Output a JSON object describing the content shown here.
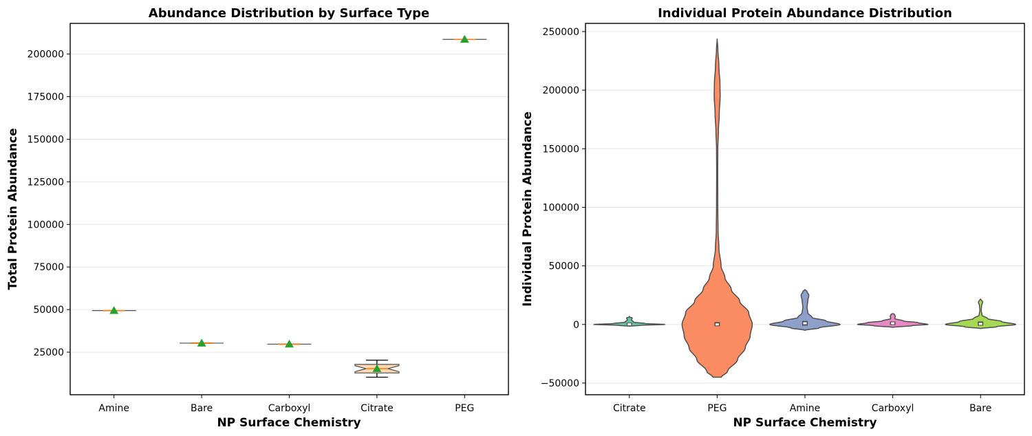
{
  "chart_data": [
    {
      "type": "box",
      "title": "Abundance Distribution by Surface Type",
      "xlabel": "NP Surface Chemistry",
      "ylabel": "Total Protein Abundance",
      "ylim": [
        0,
        218000
      ],
      "yticks": [
        25000,
        50000,
        75000,
        100000,
        125000,
        150000,
        175000,
        200000
      ],
      "ytick_labels": [
        "25000",
        "50000",
        "75000",
        "100000",
        "125000",
        "150000",
        "175000",
        "200000"
      ],
      "grid": "horizontal",
      "categories": [
        "Amine",
        "Bare",
        "Carboxyl",
        "Citrate",
        "PEG"
      ],
      "boxes": [
        {
          "category": "Amine",
          "whislo": 49400,
          "q1": 49400,
          "median": 49400,
          "q3": 49400,
          "whishi": 49400,
          "mean": 49400
        },
        {
          "category": "Bare",
          "whislo": 30300,
          "q1": 30300,
          "median": 30300,
          "q3": 30300,
          "whishi": 30300,
          "mean": 30300
        },
        {
          "category": "Carboxyl",
          "whislo": 29700,
          "q1": 29700,
          "median": 29700,
          "q3": 29700,
          "whishi": 29700,
          "mean": 29700
        },
        {
          "category": "Citrate",
          "whislo": 10300,
          "q1": 12800,
          "median": 15300,
          "q3": 17800,
          "whishi": 20300,
          "mean": 15300
        },
        {
          "category": "PEG",
          "whislo": 208600,
          "q1": 208600,
          "median": 208600,
          "q3": 208600,
          "whishi": 208600,
          "mean": 208600
        }
      ],
      "colors": {
        "box_edge": "#4d4d4d",
        "box_fill": "#fbd9b5",
        "median": "#ff7f0e",
        "mean_marker": "#2ca02c",
        "whisker": "#000000"
      }
    },
    {
      "type": "violin",
      "title": "Individual Protein Abundance Distribution",
      "xlabel": "NP Surface Chemistry",
      "ylabel": "Individual Protein Abundance",
      "ylim": [
        -60000,
        257000
      ],
      "yticks": [
        -50000,
        0,
        50000,
        100000,
        150000,
        200000,
        250000
      ],
      "ytick_labels": [
        "−50000",
        "0",
        "50000",
        "100000",
        "150000",
        "200000",
        "250000"
      ],
      "grid": "horizontal",
      "categories": [
        "Citrate",
        "PEG",
        "Amine",
        "Carboxyl",
        "Bare"
      ],
      "violins": [
        {
          "category": "Citrate",
          "color": "#66c2a5",
          "ymin": -1500,
          "ymax": 6500,
          "q1": -500,
          "median": 200,
          "q3": 1500,
          "profile": [
            [
              -1500,
              0.0
            ],
            [
              -800,
              0.3
            ],
            [
              0,
              1.0
            ],
            [
              800,
              0.45
            ],
            [
              2000,
              0.12
            ],
            [
              4000,
              0.06
            ],
            [
              5500,
              0.08
            ],
            [
              6500,
              0.0
            ]
          ]
        },
        {
          "category": "PEG",
          "color": "#fc8d62",
          "ymin": -45000,
          "ymax": 244000,
          "q1": -1500,
          "median": 0,
          "q3": 2000,
          "profile": [
            [
              -45000,
              0.12
            ],
            [
              -40000,
              0.3
            ],
            [
              -30000,
              0.58
            ],
            [
              -20000,
              0.8
            ],
            [
              -10000,
              0.94
            ],
            [
              0,
              1.0
            ],
            [
              10000,
              0.9
            ],
            [
              20000,
              0.64
            ],
            [
              30000,
              0.4
            ],
            [
              40000,
              0.22
            ],
            [
              50000,
              0.11
            ],
            [
              65000,
              0.05
            ],
            [
              80000,
              0.025
            ],
            [
              100000,
              0.018
            ],
            [
              130000,
              0.015
            ],
            [
              150000,
              0.018
            ],
            [
              165000,
              0.035
            ],
            [
              180000,
              0.06
            ],
            [
              195000,
              0.085
            ],
            [
              205000,
              0.08
            ],
            [
              220000,
              0.05
            ],
            [
              235000,
              0.02
            ],
            [
              244000,
              0.0
            ]
          ]
        },
        {
          "category": "Amine",
          "color": "#8da0cb",
          "ymin": -5000,
          "ymax": 30000,
          "q1": -1000,
          "median": 1000,
          "q3": 3000,
          "profile": [
            [
              -5000,
              0.0
            ],
            [
              -3000,
              0.4
            ],
            [
              0,
              1.0
            ],
            [
              3000,
              0.6
            ],
            [
              6000,
              0.2
            ],
            [
              10000,
              0.08
            ],
            [
              15000,
              0.06
            ],
            [
              20000,
              0.08
            ],
            [
              25000,
              0.11
            ],
            [
              28000,
              0.06
            ],
            [
              30000,
              0.0
            ]
          ]
        },
        {
          "category": "Carboxyl",
          "color": "#e78ac3",
          "ymin": -2500,
          "ymax": 9500,
          "q1": -500,
          "median": 1000,
          "q3": 2500,
          "profile": [
            [
              -2500,
              0.0
            ],
            [
              -1000,
              0.55
            ],
            [
              0,
              1.0
            ],
            [
              1500,
              0.72
            ],
            [
              3000,
              0.3
            ],
            [
              5000,
              0.06
            ],
            [
              7000,
              0.07
            ],
            [
              8500,
              0.05
            ],
            [
              9500,
              0.0
            ]
          ]
        },
        {
          "category": "Bare",
          "color": "#a6d854",
          "ymin": -3500,
          "ymax": 22000,
          "q1": -1000,
          "median": 500,
          "q3": 2500,
          "profile": [
            [
              -3500,
              0.0
            ],
            [
              -2000,
              0.45
            ],
            [
              0,
              1.0
            ],
            [
              2500,
              0.6
            ],
            [
              5000,
              0.2
            ],
            [
              8000,
              0.04
            ],
            [
              12000,
              0.02
            ],
            [
              16000,
              0.03
            ],
            [
              19000,
              0.06
            ],
            [
              22000,
              0.0
            ]
          ]
        }
      ],
      "colors": {
        "edge": "#4d4d4d",
        "inner_box": "#4d4d4d",
        "inner_median": "#ffffff"
      }
    }
  ]
}
